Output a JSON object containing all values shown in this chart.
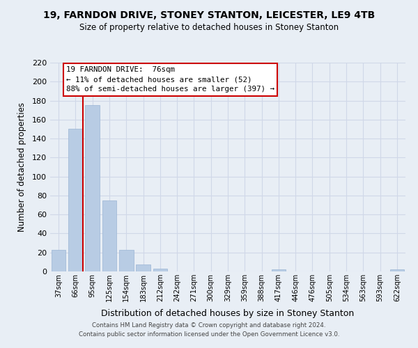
{
  "title": "19, FARNDON DRIVE, STONEY STANTON, LEICESTER, LE9 4TB",
  "subtitle": "Size of property relative to detached houses in Stoney Stanton",
  "xlabel": "Distribution of detached houses by size in Stoney Stanton",
  "ylabel": "Number of detached properties",
  "categories": [
    "37sqm",
    "66sqm",
    "95sqm",
    "125sqm",
    "154sqm",
    "183sqm",
    "212sqm",
    "242sqm",
    "271sqm",
    "300sqm",
    "329sqm",
    "359sqm",
    "388sqm",
    "417sqm",
    "446sqm",
    "476sqm",
    "505sqm",
    "534sqm",
    "563sqm",
    "593sqm",
    "622sqm"
  ],
  "values": [
    23,
    150,
    175,
    75,
    23,
    7,
    3,
    0,
    0,
    0,
    0,
    0,
    0,
    2,
    0,
    0,
    0,
    0,
    0,
    0,
    2
  ],
  "bar_color": "#b8cce4",
  "bar_edge_color": "#9ab5d5",
  "property_line_color": "#cc0000",
  "property_line_x": 1.42,
  "annotation_line1": "19 FARNDON DRIVE:  76sqm",
  "annotation_line2": "← 11% of detached houses are smaller (52)",
  "annotation_line3": "88% of semi-detached houses are larger (397) →",
  "annotation_box_color": "#cc0000",
  "ylim": [
    0,
    220
  ],
  "yticks": [
    0,
    20,
    40,
    60,
    80,
    100,
    120,
    140,
    160,
    180,
    200,
    220
  ],
  "grid_color": "#d0d8e8",
  "background_color": "#e8eef5",
  "plot_bg_color": "#e8eef5",
  "footer_line1": "Contains HM Land Registry data © Crown copyright and database right 2024.",
  "footer_line2": "Contains public sector information licensed under the Open Government Licence v3.0."
}
